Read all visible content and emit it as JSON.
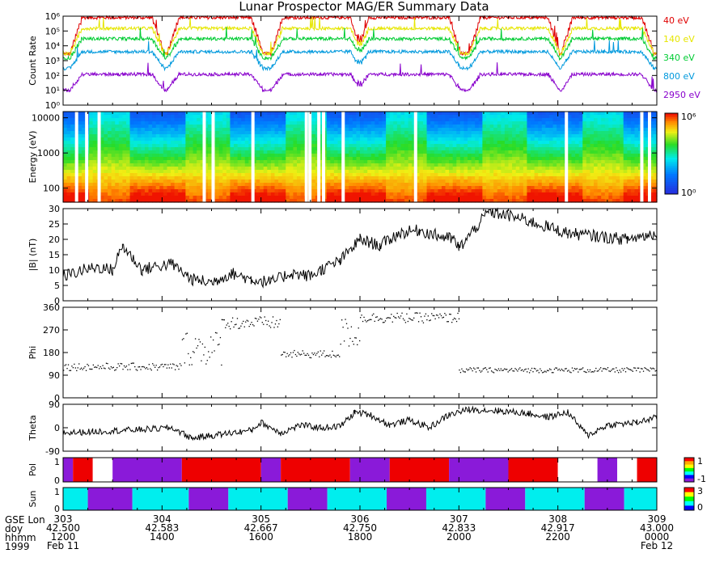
{
  "title": "Lunar Prospector MAG/ER Summary Data",
  "colors": {
    "40 eV": "#e00000",
    "140 eV": "#e6e600",
    "340 eV": "#00cc33",
    "800 eV": "#0099dd",
    "2950 eV": "#8800cc",
    "pol_pos": "#ee0000",
    "pol_neg": "#8a1ad9",
    "sun_lit": "#00eeee",
    "sun_dark": "#8a1ad9"
  },
  "chart_data": [
    {
      "type": "line",
      "panel": "count_rate",
      "ylabel": "Count Rate",
      "yscale": "log",
      "ylim": [
        1,
        1000000
      ],
      "yticks": [
        "10⁰",
        "10¹",
        "10²",
        "10³",
        "10⁴",
        "10⁵",
        "10⁶"
      ],
      "legend_placement": "right",
      "series": [
        {
          "name": "40 eV",
          "base_low": 3000,
          "base_high": 800000
        },
        {
          "name": "140 eV",
          "base_low": 3000,
          "base_high": 150000
        },
        {
          "name": "340 eV",
          "base_low": 1500,
          "base_high": 30000
        },
        {
          "name": "800 eV",
          "base_low": 300,
          "base_high": 4000
        },
        {
          "name": "2950 eV",
          "base_low": 10,
          "base_high": 120
        }
      ]
    },
    {
      "type": "heatmap",
      "panel": "energy_spectrogram",
      "ylabel": "Energy (eV)",
      "yscale": "log",
      "ylim": [
        40,
        15000
      ],
      "yticks": [
        "100",
        "1000",
        "10000"
      ],
      "colorbar_range": [
        "10⁰",
        "10⁶"
      ],
      "gap_columns_fraction": [
        0.02,
        0.037,
        0.058,
        0.235,
        0.25,
        0.317,
        0.407,
        0.413,
        0.428,
        0.436,
        0.469,
        0.591,
        0.845,
        0.972,
        0.985
      ]
    },
    {
      "type": "line",
      "panel": "field_magnitude",
      "ylabel": "|B| (nT)",
      "ylim": [
        0,
        30
      ],
      "yticks": [
        "0",
        "5",
        "10",
        "15",
        "20",
        "25",
        "30"
      ],
      "x": [
        303.0,
        303.2,
        303.35,
        303.5,
        303.6,
        303.8,
        303.9,
        304.1,
        304.3,
        304.5,
        304.7,
        304.9,
        305.1,
        305.3,
        305.5,
        305.6,
        305.8,
        306.0,
        306.2,
        306.4,
        306.6,
        306.8,
        306.95,
        307.0,
        307.3,
        307.6,
        307.9,
        308.1,
        308.4,
        308.7,
        309.0
      ],
      "values": [
        8,
        10,
        11,
        10,
        18,
        10,
        11,
        12,
        7,
        6,
        9,
        7,
        6,
        9,
        8,
        10,
        13,
        20,
        18,
        22,
        23,
        21,
        20,
        17,
        29,
        27,
        24,
        22,
        21,
        20,
        22
      ]
    },
    {
      "type": "scatter",
      "panel": "phi",
      "ylabel": "Phi",
      "ylim": [
        0,
        360
      ],
      "yticks": [
        "0",
        "90",
        "180",
        "270",
        "360"
      ],
      "segments": [
        {
          "x": [
            303.0,
            304.2
          ],
          "y_center": 125,
          "spread": 15
        },
        {
          "x": [
            304.2,
            304.6
          ],
          "y_center": 200,
          "spread": 70
        },
        {
          "x": [
            304.6,
            305.2
          ],
          "y_center": 300,
          "spread": 25
        },
        {
          "x": [
            305.2,
            305.8
          ],
          "y_center": 175,
          "spread": 15
        },
        {
          "x": [
            305.8,
            306.0
          ],
          "y_center": 260,
          "spread": 60
        },
        {
          "x": [
            306.0,
            307.0
          ],
          "y_center": 320,
          "spread": 20
        },
        {
          "x": [
            307.0,
            309.0
          ],
          "y_center": 112,
          "spread": 10
        }
      ]
    },
    {
      "type": "line",
      "panel": "theta",
      "ylabel": "Theta",
      "ylim": [
        -90,
        90
      ],
      "yticks": [
        "-90",
        "0",
        "90"
      ],
      "x": [
        303.0,
        303.3,
        303.6,
        303.9,
        304.1,
        304.3,
        304.5,
        304.7,
        304.9,
        305.0,
        305.2,
        305.4,
        305.6,
        305.8,
        305.95,
        306.1,
        306.3,
        306.5,
        306.7,
        306.9,
        307.1,
        307.4,
        307.7,
        307.9,
        308.1,
        308.3,
        308.5,
        308.8,
        309.0
      ],
      "values": [
        -20,
        -15,
        -10,
        -5,
        0,
        -40,
        -30,
        -20,
        -10,
        20,
        -20,
        10,
        0,
        5,
        60,
        50,
        10,
        30,
        0,
        50,
        70,
        65,
        55,
        40,
        60,
        -30,
        10,
        20,
        40
      ]
    },
    {
      "type": "bar",
      "panel": "polarity",
      "ylabel": "Pol",
      "colorbar_range": [
        "-1",
        "1"
      ],
      "blocks": [
        {
          "from": 303.0,
          "to": 303.1,
          "value": -1
        },
        {
          "from": 303.1,
          "to": 303.3,
          "value": 1
        },
        {
          "from": 303.3,
          "to": 303.5,
          "value": 0
        },
        {
          "from": 303.5,
          "to": 304.2,
          "value": -1
        },
        {
          "from": 304.2,
          "to": 305.0,
          "value": 1
        },
        {
          "from": 305.0,
          "to": 305.2,
          "value": -1
        },
        {
          "from": 305.2,
          "to": 305.9,
          "value": 1
        },
        {
          "from": 305.9,
          "to": 306.3,
          "value": -1
        },
        {
          "from": 306.3,
          "to": 306.9,
          "value": 1
        },
        {
          "from": 306.9,
          "to": 307.5,
          "value": -1
        },
        {
          "from": 307.5,
          "to": 308.0,
          "value": 1
        },
        {
          "from": 308.0,
          "to": 308.4,
          "value": 0
        },
        {
          "from": 308.4,
          "to": 308.6,
          "value": -1
        },
        {
          "from": 308.6,
          "to": 308.8,
          "value": 0
        },
        {
          "from": 308.8,
          "to": 309.0,
          "value": 1
        }
      ]
    },
    {
      "type": "bar",
      "panel": "sun",
      "ylabel": "Sun",
      "colorbar_range": [
        "0",
        "3"
      ],
      "blocks": [
        {
          "from": 303.0,
          "to": 303.25,
          "value": 3
        },
        {
          "from": 303.25,
          "to": 303.7,
          "value": 0
        },
        {
          "from": 303.7,
          "to": 304.27,
          "value": 3
        },
        {
          "from": 304.27,
          "to": 304.67,
          "value": 0
        },
        {
          "from": 304.67,
          "to": 305.27,
          "value": 3
        },
        {
          "from": 305.27,
          "to": 305.67,
          "value": 0
        },
        {
          "from": 305.67,
          "to": 306.27,
          "value": 3
        },
        {
          "from": 306.27,
          "to": 306.67,
          "value": 0
        },
        {
          "from": 306.67,
          "to": 307.27,
          "value": 3
        },
        {
          "from": 307.27,
          "to": 307.67,
          "value": 0
        },
        {
          "from": 307.67,
          "to": 308.27,
          "value": 3
        },
        {
          "from": 308.27,
          "to": 308.67,
          "value": 0
        },
        {
          "from": 308.67,
          "to": 309.0,
          "value": 3
        }
      ]
    }
  ],
  "x_axis": {
    "labels": [
      "GSE Lon",
      "doy",
      "hhmm",
      "1999"
    ],
    "ticks": [
      {
        "lon": "303",
        "doy": "42.500",
        "hhmm": "1200",
        "date": "Feb 11"
      },
      {
        "lon": "304",
        "doy": "42.583",
        "hhmm": "1400",
        "date": ""
      },
      {
        "lon": "305",
        "doy": "42.667",
        "hhmm": "1600",
        "date": ""
      },
      {
        "lon": "306",
        "doy": "42.750",
        "hhmm": "1800",
        "date": ""
      },
      {
        "lon": "307",
        "doy": "42.833",
        "hhmm": "2000",
        "date": ""
      },
      {
        "lon": "308",
        "doy": "42.917",
        "hhmm": "2200",
        "date": ""
      },
      {
        "lon": "309",
        "doy": "43.000",
        "hhmm": "0000",
        "date": "Feb 12"
      }
    ]
  }
}
